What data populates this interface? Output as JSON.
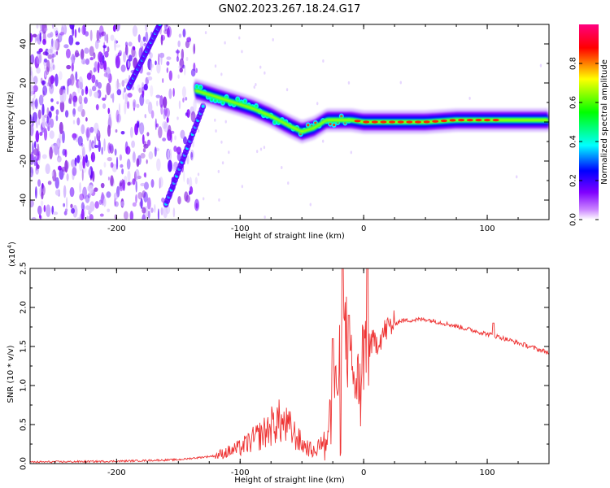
{
  "title": "GN02.2023.267.18.24.G17",
  "chart_data": [
    {
      "type": "heatmap",
      "name": "spectrogram",
      "xlabel": "Height of straight line (km)",
      "ylabel": "Frequency (Hz)",
      "xlim": [
        -270,
        150
      ],
      "ylim": [
        -50,
        50
      ],
      "xticks": [
        -200,
        -100,
        0,
        100
      ],
      "xtick_labels": [
        "-200",
        "-100",
        "0",
        "100"
      ],
      "yticks": [
        -40,
        -20,
        0,
        20,
        40
      ],
      "ytick_labels": [
        "-40",
        "-20",
        "0",
        "20",
        "40"
      ],
      "colorbar": {
        "label": "Normalized spectral amplitude",
        "range": [
          0,
          1
        ],
        "ticks": [
          0.0,
          0.2,
          0.4,
          0.6,
          0.8
        ],
        "tick_labels": [
          "0.0",
          "0.2",
          "0.4",
          "0.6",
          "0.8"
        ],
        "colors": [
          "#ffffff",
          "#7f00ff",
          "#0000ff",
          "#00ffff",
          "#00ff00",
          "#ffff00",
          "#ff0000",
          "#ff0080"
        ]
      },
      "ridge": [
        {
          "x": -135,
          "y": 16
        },
        {
          "x": -120,
          "y": 13
        },
        {
          "x": -105,
          "y": 10
        },
        {
          "x": -90,
          "y": 7
        },
        {
          "x": -75,
          "y": 3
        },
        {
          "x": -60,
          "y": -2
        },
        {
          "x": -50,
          "y": -5
        },
        {
          "x": -40,
          "y": -3
        },
        {
          "x": -30,
          "y": 1
        },
        {
          "x": -20,
          "y": 1
        },
        {
          "x": -10,
          "y": 1
        },
        {
          "x": 0,
          "y": 0
        },
        {
          "x": 25,
          "y": 0
        },
        {
          "x": 50,
          "y": 0
        },
        {
          "x": 75,
          "y": 1
        },
        {
          "x": 100,
          "y": 1
        },
        {
          "x": 125,
          "y": 1
        },
        {
          "x": 150,
          "y": 1
        }
      ],
      "streak_upper": [
        {
          "x": -190,
          "y": 18
        },
        {
          "x": -165,
          "y": 50
        }
      ],
      "streak_lower": [
        {
          "x": -160,
          "y": -42
        },
        {
          "x": -130,
          "y": 8
        }
      ]
    },
    {
      "type": "line",
      "name": "snr",
      "xlabel": "Height of straight line (km)",
      "ylabel": "SNR (10 * v/v)",
      "scale_label": "(x10",
      "scale_exp": "4",
      "scale_close": ")",
      "xlim": [
        -270,
        150
      ],
      "ylim": [
        0,
        2.5
      ],
      "xticks": [
        -200,
        -100,
        0,
        100
      ],
      "xtick_labels": [
        "-200",
        "-100",
        "0",
        "100"
      ],
      "yticks": [
        0.0,
        0.5,
        1.0,
        1.5,
        2.0,
        2.5
      ],
      "ytick_labels": [
        "0.0",
        "0.5",
        "1.0",
        "1.5",
        "2.0",
        "2.5"
      ],
      "color": "#ee3333",
      "envelope": [
        {
          "x": -270,
          "y": 0.02
        },
        {
          "x": -200,
          "y": 0.03
        },
        {
          "x": -150,
          "y": 0.05
        },
        {
          "x": -120,
          "y": 0.1
        },
        {
          "x": -100,
          "y": 0.2
        },
        {
          "x": -80,
          "y": 0.4
        },
        {
          "x": -70,
          "y": 0.55
        },
        {
          "x": -60,
          "y": 0.45
        },
        {
          "x": -50,
          "y": 0.25
        },
        {
          "x": -40,
          "y": 0.15
        },
        {
          "x": -30,
          "y": 0.4
        },
        {
          "x": -20,
          "y": 1.2
        },
        {
          "x": -15,
          "y": 1.6
        },
        {
          "x": -10,
          "y": 1.2
        },
        {
          "x": -5,
          "y": 1.0
        },
        {
          "x": 0,
          "y": 1.5
        },
        {
          "x": 10,
          "y": 1.55
        },
        {
          "x": 20,
          "y": 1.75
        },
        {
          "x": 30,
          "y": 1.83
        },
        {
          "x": 50,
          "y": 1.85
        },
        {
          "x": 70,
          "y": 1.78
        },
        {
          "x": 90,
          "y": 1.7
        },
        {
          "x": 110,
          "y": 1.62
        },
        {
          "x": 130,
          "y": 1.52
        },
        {
          "x": 150,
          "y": 1.42
        }
      ],
      "spikes": [
        {
          "x": -17,
          "y": 2.5
        },
        {
          "x": 3,
          "y": 2.5
        },
        {
          "x": -25,
          "y": 1.6
        },
        {
          "x": -12,
          "y": 1.9
        },
        {
          "x": 105,
          "y": 1.8
        }
      ]
    }
  ]
}
